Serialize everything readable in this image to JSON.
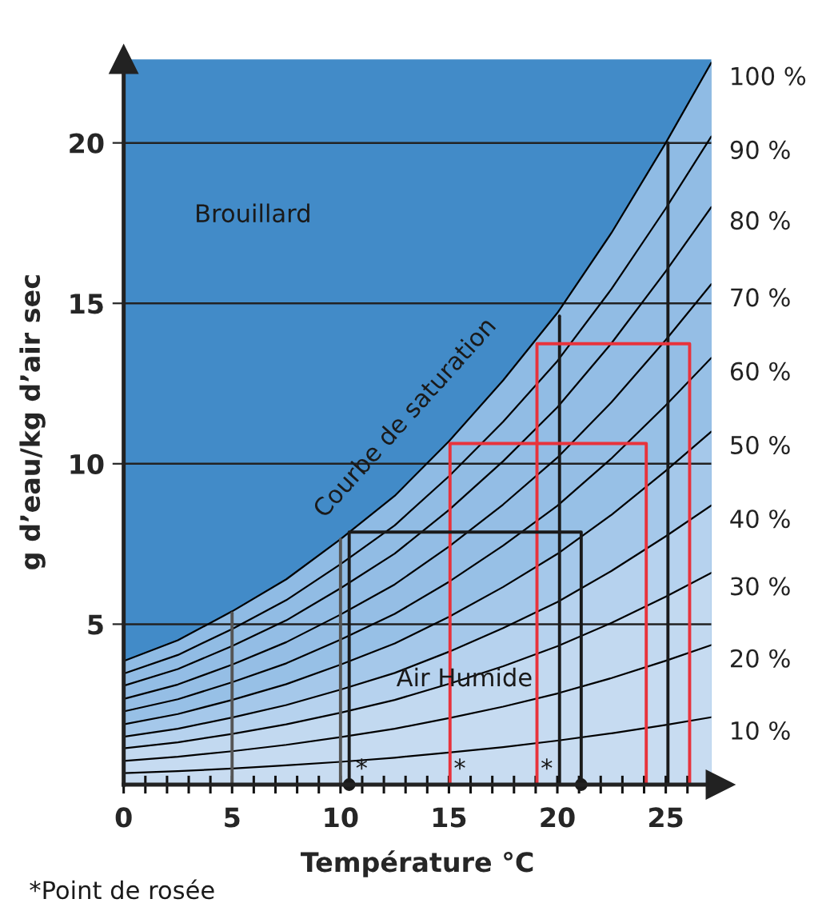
{
  "chart_data": {
    "type": "area",
    "xlabel": "Température °C",
    "ylabel": "g d’eau/kg d’air sec",
    "x": [
      0,
      2.5,
      5,
      7.5,
      10,
      12.5,
      15,
      17.5,
      20,
      22.5,
      25,
      27.1
    ],
    "xlim": [
      0,
      27.1
    ],
    "ylim": [
      0,
      22.6
    ],
    "xticks": [
      0,
      {
        "value": 1,
        "label": null
      },
      {
        "value": 2,
        "label": null
      },
      {
        "value": 3,
        "label": null
      },
      {
        "value": 4,
        "label": null
      },
      5,
      {
        "value": 6,
        "label": null
      },
      {
        "value": 7,
        "label": null
      },
      {
        "value": 8,
        "label": null
      },
      {
        "value": 9,
        "label": null
      },
      10,
      {
        "value": 11,
        "label": null
      },
      {
        "value": 12,
        "label": null
      },
      {
        "value": 13,
        "label": null
      },
      {
        "value": 14,
        "label": null
      },
      15,
      {
        "value": 16,
        "label": null
      },
      {
        "value": 17,
        "label": null
      },
      {
        "value": 18,
        "label": null
      },
      {
        "value": 19,
        "label": null
      },
      20,
      {
        "value": 21,
        "label": null
      },
      {
        "value": 22,
        "label": null
      },
      {
        "value": 23,
        "label": null
      },
      {
        "value": 24,
        "label": null
      },
      25,
      {
        "value": 26,
        "label": null
      }
    ],
    "yticks": [
      5,
      10,
      15,
      20
    ],
    "grid": "y",
    "series": [
      {
        "name": "100 %",
        "color": "#8fbbe4",
        "values": [
          3.85,
          4.5,
          5.4,
          6.4,
          7.65,
          9.0,
          10.7,
          12.6,
          14.7,
          17.2,
          20.0,
          22.5
        ]
      },
      {
        "name": "90 %",
        "color": "#91bce4",
        "values": [
          3.46,
          4.04,
          4.85,
          5.75,
          6.87,
          8.08,
          9.61,
          11.31,
          13.2,
          15.45,
          17.96,
          20.2
        ]
      },
      {
        "name": "80 %",
        "color": "#93bde5",
        "values": [
          3.08,
          3.6,
          4.32,
          5.12,
          6.12,
          7.2,
          8.56,
          10.08,
          11.76,
          13.76,
          16.0,
          18.0
        ]
      },
      {
        "name": "70 %",
        "color": "#95bee5",
        "values": [
          2.67,
          3.12,
          3.74,
          4.44,
          5.3,
          6.24,
          7.42,
          8.73,
          10.19,
          11.92,
          13.86,
          15.6
        ]
      },
      {
        "name": "60 %",
        "color": "#97c0e6",
        "values": [
          2.28,
          2.66,
          3.19,
          3.78,
          4.52,
          5.32,
          6.32,
          7.45,
          8.69,
          10.17,
          11.82,
          13.3
        ]
      },
      {
        "name": "50 %",
        "color": "#a5c8ea",
        "values": [
          1.88,
          2.2,
          2.64,
          3.13,
          3.74,
          4.4,
          5.23,
          6.16,
          7.19,
          8.41,
          9.78,
          11.0
        ]
      },
      {
        "name": "40 %",
        "color": "#b6d2ee",
        "values": [
          1.49,
          1.74,
          2.09,
          2.48,
          2.96,
          3.48,
          4.14,
          4.88,
          5.69,
          6.66,
          7.74,
          8.7
        ]
      },
      {
        "name": "30 %",
        "color": "#c2d9f0",
        "values": [
          1.13,
          1.32,
          1.58,
          1.88,
          2.24,
          2.64,
          3.14,
          3.69,
          4.31,
          5.04,
          5.86,
          6.6
        ]
      },
      {
        "name": "20 %",
        "color": "#c6dbf1",
        "values": [
          0.74,
          0.87,
          1.04,
          1.24,
          1.48,
          1.74,
          2.07,
          2.43,
          2.84,
          3.32,
          3.86,
          4.35
        ]
      },
      {
        "name": "10 %",
        "color": "#c8dcf1",
        "values": [
          0.36,
          0.42,
          0.5,
          0.6,
          0.71,
          0.84,
          1.0,
          1.17,
          1.37,
          1.6,
          1.86,
          2.1
        ]
      },
      {
        "type": "line",
        "color": "#555555",
        "x": [
          5,
          5
        ],
        "values": [
          0,
          5.35
        ]
      },
      {
        "type": "line",
        "color": "#555555",
        "x": [
          10.0,
          10.0
        ],
        "values": [
          0,
          7.65
        ]
      },
      {
        "type": "line",
        "color": "#1a1a1a",
        "x": [
          20.1,
          20.1
        ],
        "values": [
          0,
          14.6
        ]
      },
      {
        "type": "line",
        "color": "#1a1a1a",
        "x": [
          25.1,
          25.1
        ],
        "values": [
          0,
          20.0
        ]
      },
      {
        "type": "line",
        "color": "#e8333c",
        "x": [
          15.05,
          15.05,
          24.1,
          24.1
        ],
        "values": [
          0,
          10.63,
          10.63,
          0
        ]
      },
      {
        "type": "line",
        "color": "#e8333c",
        "x": [
          19.06,
          19.06,
          26.1,
          26.1
        ],
        "values": [
          0,
          13.74,
          13.74,
          0
        ]
      },
      {
        "type": "line",
        "color": "#1a1a1a",
        "x": [
          10.4,
          10.4,
          21.1,
          21.1
        ],
        "values": [
          0,
          7.87,
          7.87,
          0
        ]
      },
      {
        "type": "scatter",
        "color": "#1a1a1a",
        "marker": "circle",
        "x": [
          10.4,
          21.1
        ],
        "values": [
          0,
          0
        ]
      }
    ],
    "annotations": [
      "Brouillard",
      "Courbe de saturation",
      "Air Humide",
      "*",
      "*",
      "*",
      "*Point de rosée"
    ]
  }
}
